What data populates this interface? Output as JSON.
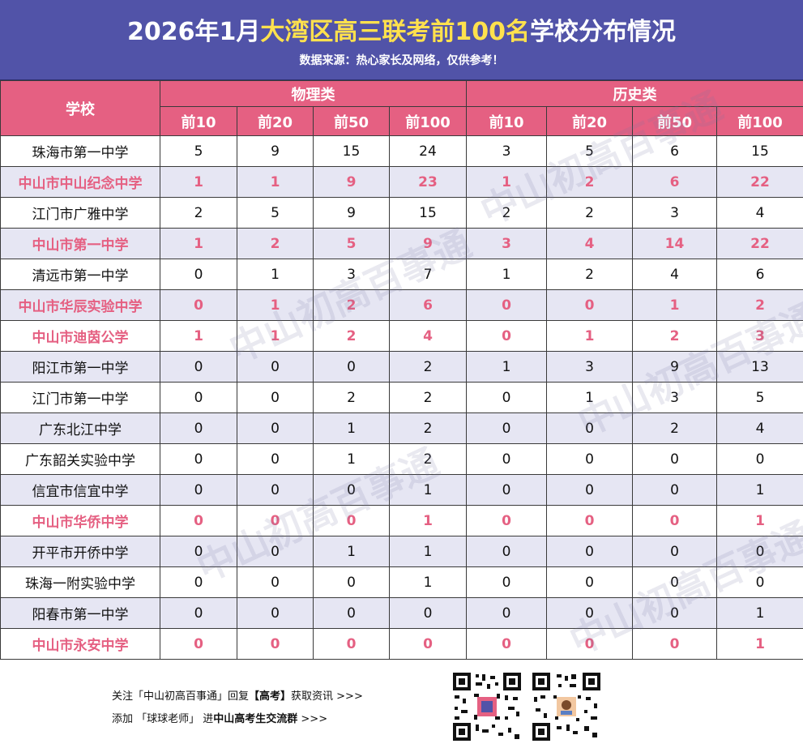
{
  "header": {
    "title_part1": "2026年1月",
    "title_highlight": "大湾区高三联考前100名",
    "title_part2": "学校分布情况",
    "subtitle": "数据来源：热心家长及网络，仅供参考！"
  },
  "table": {
    "school_header": "学校",
    "group_physics": "物理类",
    "group_history": "历史类",
    "sub_headers": [
      "前10",
      "前20",
      "前50",
      "前100",
      "前10",
      "前20",
      "前50",
      "前100"
    ],
    "rows": [
      {
        "school": "珠海市第一中学",
        "zs": false,
        "v": [
          5,
          9,
          15,
          24,
          3,
          5,
          6,
          15
        ]
      },
      {
        "school": "中山市中山纪念中学",
        "zs": true,
        "v": [
          1,
          1,
          9,
          23,
          1,
          2,
          6,
          22
        ]
      },
      {
        "school": "江门市广雅中学",
        "zs": false,
        "v": [
          2,
          5,
          9,
          15,
          2,
          2,
          3,
          4
        ]
      },
      {
        "school": "中山市第一中学",
        "zs": true,
        "v": [
          1,
          2,
          5,
          9,
          3,
          4,
          14,
          22
        ]
      },
      {
        "school": "清远市第一中学",
        "zs": false,
        "v": [
          0,
          1,
          3,
          7,
          1,
          2,
          4,
          6
        ]
      },
      {
        "school": "中山市华辰实验中学",
        "zs": true,
        "v": [
          0,
          1,
          2,
          6,
          0,
          0,
          1,
          2
        ]
      },
      {
        "school": "中山市迪茵公学",
        "zs": true,
        "v": [
          1,
          1,
          2,
          4,
          0,
          1,
          2,
          3
        ]
      },
      {
        "school": "阳江市第一中学",
        "zs": false,
        "v": [
          0,
          0,
          0,
          2,
          1,
          3,
          9,
          13
        ]
      },
      {
        "school": "江门市第一中学",
        "zs": false,
        "v": [
          0,
          0,
          2,
          2,
          0,
          1,
          3,
          5
        ]
      },
      {
        "school": "广东北江中学",
        "zs": false,
        "v": [
          0,
          0,
          1,
          2,
          0,
          0,
          2,
          4
        ]
      },
      {
        "school": "广东韶关实验中学",
        "zs": false,
        "v": [
          0,
          0,
          1,
          2,
          0,
          0,
          0,
          0
        ]
      },
      {
        "school": "信宜市信宜中学",
        "zs": false,
        "v": [
          0,
          0,
          0,
          1,
          0,
          0,
          0,
          1
        ]
      },
      {
        "school": "中山市华侨中学",
        "zs": true,
        "v": [
          0,
          0,
          0,
          1,
          0,
          0,
          0,
          1
        ]
      },
      {
        "school": "开平市开侨中学",
        "zs": false,
        "v": [
          0,
          0,
          1,
          1,
          0,
          0,
          0,
          0
        ]
      },
      {
        "school": "珠海一附实验中学",
        "zs": false,
        "v": [
          0,
          0,
          0,
          1,
          0,
          0,
          0,
          0
        ]
      },
      {
        "school": "阳春市第一中学",
        "zs": false,
        "v": [
          0,
          0,
          0,
          0,
          0,
          0,
          0,
          1
        ]
      },
      {
        "school": "中山市永安中学",
        "zs": true,
        "v": [
          0,
          0,
          0,
          0,
          0,
          0,
          0,
          1
        ]
      }
    ]
  },
  "footer": {
    "line1_a": "关注「中山初高百事通」回复",
    "line1_b": "【高考】",
    "line1_c": "获取资讯 >>>",
    "line2_a": "添加 「球球老师」 进",
    "line2_b": "中山高考生交流群",
    "line2_c": " >>>"
  },
  "watermark": "中山初高百事通",
  "colors": {
    "header_bg": "#5153a8",
    "accent": "#e56082",
    "highlight": "#ffe14d",
    "row_alt": "#e6e6f3"
  }
}
